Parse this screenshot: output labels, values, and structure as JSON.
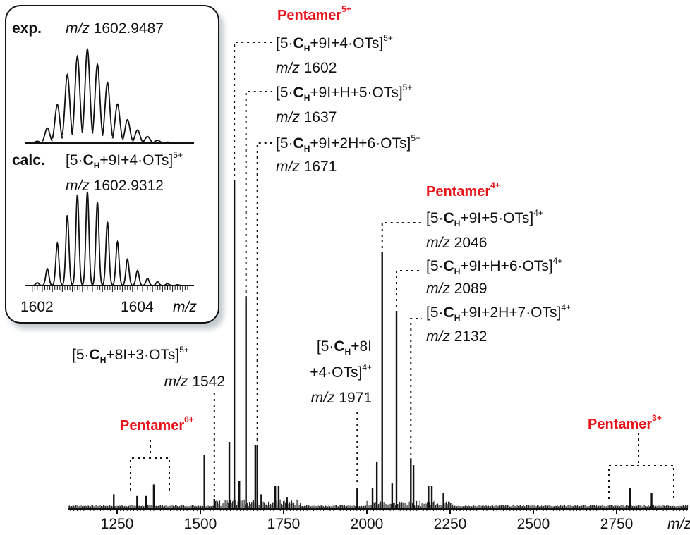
{
  "chart_data": {
    "type": "line",
    "xlabel": "m/z",
    "xlim": [
      1104,
      2964
    ],
    "xticks": [
      1250,
      1500,
      1750,
      2000,
      2250,
      2500,
      2750
    ],
    "xtick_labels": [
      "1250",
      "1500",
      "1750",
      "2000",
      "2250",
      "2500",
      "2750"
    ],
    "ylabel": "",
    "y_axis_shown": false,
    "peaks": [
      {
        "mz": 1240,
        "intensity": 4
      },
      {
        "mz": 1310,
        "intensity": 3.7
      },
      {
        "mz": 1337,
        "intensity": 3.7
      },
      {
        "mz": 1360,
        "intensity": 7
      },
      {
        "mz": 1512,
        "intensity": 16
      },
      {
        "mz": 1542,
        "intensity": 2.6
      },
      {
        "mz": 1587,
        "intensity": 20
      },
      {
        "mz": 1602,
        "intensity": 100
      },
      {
        "mz": 1617,
        "intensity": 8
      },
      {
        "mz": 1637,
        "intensity": 64.5
      },
      {
        "mz": 1665,
        "intensity": 19
      },
      {
        "mz": 1671,
        "intensity": 19
      },
      {
        "mz": 1683,
        "intensity": 4
      },
      {
        "mz": 1725,
        "intensity": 6.5
      },
      {
        "mz": 1735,
        "intensity": 6.5
      },
      {
        "mz": 1760,
        "intensity": 3.2
      },
      {
        "mz": 1971,
        "intensity": 6
      },
      {
        "mz": 2017,
        "intensity": 6
      },
      {
        "mz": 2030,
        "intensity": 14
      },
      {
        "mz": 2046,
        "intensity": 78
      },
      {
        "mz": 2076,
        "intensity": 7.5
      },
      {
        "mz": 2089,
        "intensity": 60
      },
      {
        "mz": 2132,
        "intensity": 15
      },
      {
        "mz": 2140,
        "intensity": 13
      },
      {
        "mz": 2185,
        "intensity": 6.5
      },
      {
        "mz": 2195,
        "intensity": 6.5
      },
      {
        "mz": 2230,
        "intensity": 4.3
      },
      {
        "mz": 2790,
        "intensity": 6
      },
      {
        "mz": 2855,
        "intensity": 4.3
      }
    ],
    "inset": {
      "x_ticks": [
        1602,
        1604
      ],
      "xtick_labels": [
        "1602",
        "1604"
      ],
      "xlabel": "m/z",
      "exp": {
        "label": "exp.",
        "mz_label": "m/z",
        "mz_value": "1602.9487",
        "peaks_mz": [
          1601.9,
          1602.1,
          1602.3,
          1602.5,
          1602.7,
          1602.9,
          1603.1,
          1603.3,
          1603.5,
          1603.7,
          1603.9,
          1604.1,
          1604.3,
          1604.5,
          1604.7
        ],
        "intensity": [
          2,
          16,
          41,
          73,
          92.5,
          100,
          84,
          64.5,
          41.5,
          25,
          14,
          7,
          3,
          1,
          0.7
        ]
      },
      "calc": {
        "label": "calc.",
        "formula": {
          "pre": "[5·",
          "c": "C",
          "sub": "H",
          "post": "+9I+4·OTs]",
          "charge": "5+"
        },
        "mz_label": "m/z",
        "mz_value": "1602.9312",
        "peaks_mz": [
          1601.9,
          1602.1,
          1602.3,
          1602.5,
          1602.7,
          1602.9,
          1603.1,
          1603.3,
          1603.5,
          1603.7,
          1603.9,
          1604.1,
          1604.3,
          1604.5,
          1604.7
        ],
        "intensity": [
          3,
          18,
          45,
          75,
          97,
          100,
          89,
          68,
          46.5,
          28,
          16,
          7.5,
          4,
          2,
          0.8
        ]
      }
    },
    "groups": [
      {
        "name": "Pentamer",
        "charge": "6+"
      },
      {
        "name": "Pentamer",
        "charge": "5+"
      },
      {
        "name": "Pentamer",
        "charge": "4+"
      },
      {
        "name": "Pentamer",
        "charge": "3+"
      }
    ],
    "annotations": [
      {
        "pre": "[5·",
        "c": "C",
        "sub": "H",
        "post": "+9I+4·OTs]",
        "charge": "5+",
        "mz_label": "m/z",
        "mz": "1602"
      },
      {
        "pre": "[5·",
        "c": "C",
        "sub": "H",
        "post": "+9I+H+5·OTs]",
        "charge": "5+",
        "mz_label": "m/z",
        "mz": "1637"
      },
      {
        "pre": "[5·",
        "c": "C",
        "sub": "H",
        "post": "+9I+2H+6·OTs]",
        "charge": "5+",
        "mz_label": "m/z",
        "mz": "1671"
      },
      {
        "pre": "[5·",
        "c": "C",
        "sub": "H",
        "post": "+9I+5·OTs]",
        "charge": "4+",
        "mz_label": "m/z",
        "mz": "2046"
      },
      {
        "pre": "[5·",
        "c": "C",
        "sub": "H",
        "post": "+9I+H+6·OTs]",
        "charge": "4+",
        "mz_label": "m/z",
        "mz": "2089"
      },
      {
        "pre": "[5·",
        "c": "C",
        "sub": "H",
        "post": "+9I+2H+7·OTs]",
        "charge": "4+",
        "mz_label": "m/z",
        "mz": "2132"
      },
      {
        "pre": "[5·",
        "c": "C",
        "sub": "H",
        "post": "+8I+3·OTs]",
        "charge": "5+",
        "mz_label": "m/z",
        "mz": "1542"
      },
      {
        "pre": "[5·",
        "c": "C",
        "sub": "H",
        "post": "+8I",
        "post2": "+4·OTs]",
        "charge": "4+",
        "mz_label": "m/z",
        "mz": "1971"
      }
    ],
    "colors": {
      "group_label": "#e8141c",
      "trace": "#111111"
    }
  }
}
